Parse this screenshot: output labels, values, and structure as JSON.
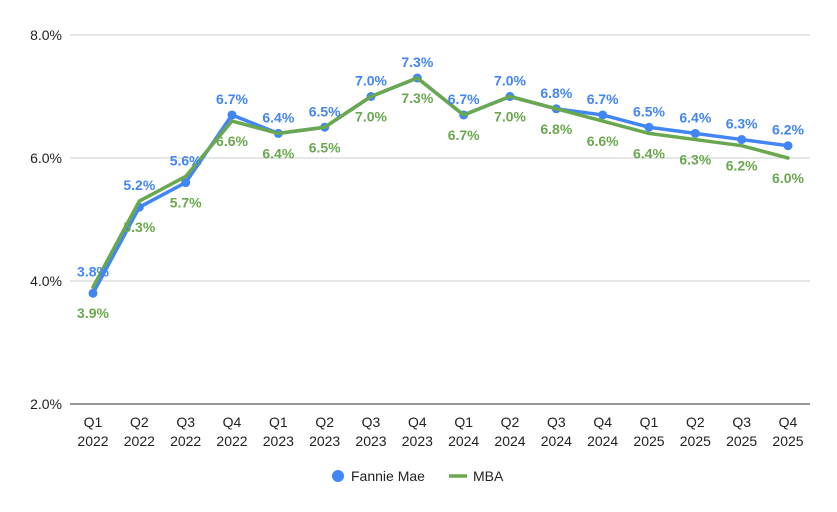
{
  "chart_data": {
    "type": "line",
    "categories": [
      [
        "Q1",
        "2022"
      ],
      [
        "Q2",
        "2022"
      ],
      [
        "Q3",
        "2022"
      ],
      [
        "Q4",
        "2022"
      ],
      [
        "Q1",
        "2023"
      ],
      [
        "Q2",
        "2023"
      ],
      [
        "Q3",
        "2023"
      ],
      [
        "Q4",
        "2023"
      ],
      [
        "Q1",
        "2024"
      ],
      [
        "Q2",
        "2024"
      ],
      [
        "Q3",
        "2024"
      ],
      [
        "Q4",
        "2024"
      ],
      [
        "Q1",
        "2025"
      ],
      [
        "Q2",
        "2025"
      ],
      [
        "Q3",
        "2025"
      ],
      [
        "Q4",
        "2025"
      ]
    ],
    "series": [
      {
        "name": "Fannie Mae",
        "color": "#4285f4",
        "marker": "circle",
        "values": [
          3.8,
          5.2,
          5.6,
          6.7,
          6.4,
          6.5,
          7.0,
          7.3,
          6.7,
          7.0,
          6.8,
          6.7,
          6.5,
          6.4,
          6.3,
          6.2
        ],
        "labels": [
          "3.8%",
          "5.2%",
          "5.6%",
          "6.7%",
          "6.4%",
          "6.5%",
          "7.0%",
          "7.3%",
          "6.7%",
          "7.0%",
          "6.8%",
          "6.7%",
          "6.5%",
          "6.4%",
          "6.3%",
          "6.2%"
        ]
      },
      {
        "name": "MBA",
        "color": "#6aa84f",
        "marker": "none",
        "values": [
          3.9,
          5.3,
          5.7,
          6.6,
          6.4,
          6.5,
          7.0,
          7.3,
          6.7,
          7.0,
          6.8,
          6.6,
          6.4,
          6.3,
          6.2,
          6.0
        ],
        "labels": [
          "3.9%",
          "5.3%",
          "5.7%",
          "6.6%",
          "6.4%",
          "6.5%",
          "7.0%",
          "7.3%",
          "6.7%",
          "7.0%",
          "6.8%",
          "6.6%",
          "6.4%",
          "6.3%",
          "6.2%",
          "6.0%"
        ]
      }
    ],
    "yticks": [
      2.0,
      4.0,
      6.0,
      8.0
    ],
    "ytick_labels": [
      "2.0%",
      "4.0%",
      "6.0%",
      "8.0%"
    ],
    "ylim": [
      2.0,
      8.0
    ],
    "grid": true,
    "legend": "bottom"
  }
}
